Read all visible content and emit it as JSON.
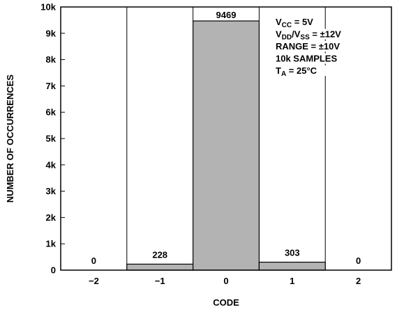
{
  "chart_data": {
    "type": "bar",
    "categories": [
      "−2",
      "−1",
      "0",
      "1",
      "2"
    ],
    "values": [
      0,
      228,
      9469,
      303,
      0
    ],
    "data_labels": [
      "0",
      "228",
      "9469",
      "303",
      "0"
    ],
    "title": "",
    "xlabel": "CODE",
    "ylabel": "NUMBER OF OCCURRENCES",
    "ylim": [
      0,
      10000
    ],
    "y_ticks": [
      0,
      1000,
      2000,
      3000,
      4000,
      5000,
      6000,
      7000,
      8000,
      9000,
      10000
    ],
    "y_tick_labels": [
      "0",
      "1k",
      "2k",
      "3k",
      "4k",
      "5k",
      "6k",
      "7k",
      "8k",
      "9k",
      "10k"
    ],
    "grid": "vertical category dividers",
    "bar_color": "#b3b3b3",
    "annotation_lines": [
      {
        "parts": [
          {
            "t": "V"
          },
          {
            "t": "CC",
            "sub": true
          },
          {
            "t": " = 5V"
          }
        ]
      },
      {
        "parts": [
          {
            "t": "V"
          },
          {
            "t": "DD",
            "sub": true
          },
          {
            "t": "/V"
          },
          {
            "t": "SS",
            "sub": true
          },
          {
            "t": " = ±12V"
          }
        ]
      },
      {
        "parts": [
          {
            "t": "RANGE = ±10V"
          }
        ]
      },
      {
        "parts": [
          {
            "t": "10k SAMPLES"
          }
        ]
      },
      {
        "parts": [
          {
            "t": "T"
          },
          {
            "t": "A",
            "sub": true
          },
          {
            "t": " = 25°C"
          }
        ]
      }
    ],
    "annotation_position": "top-right"
  }
}
